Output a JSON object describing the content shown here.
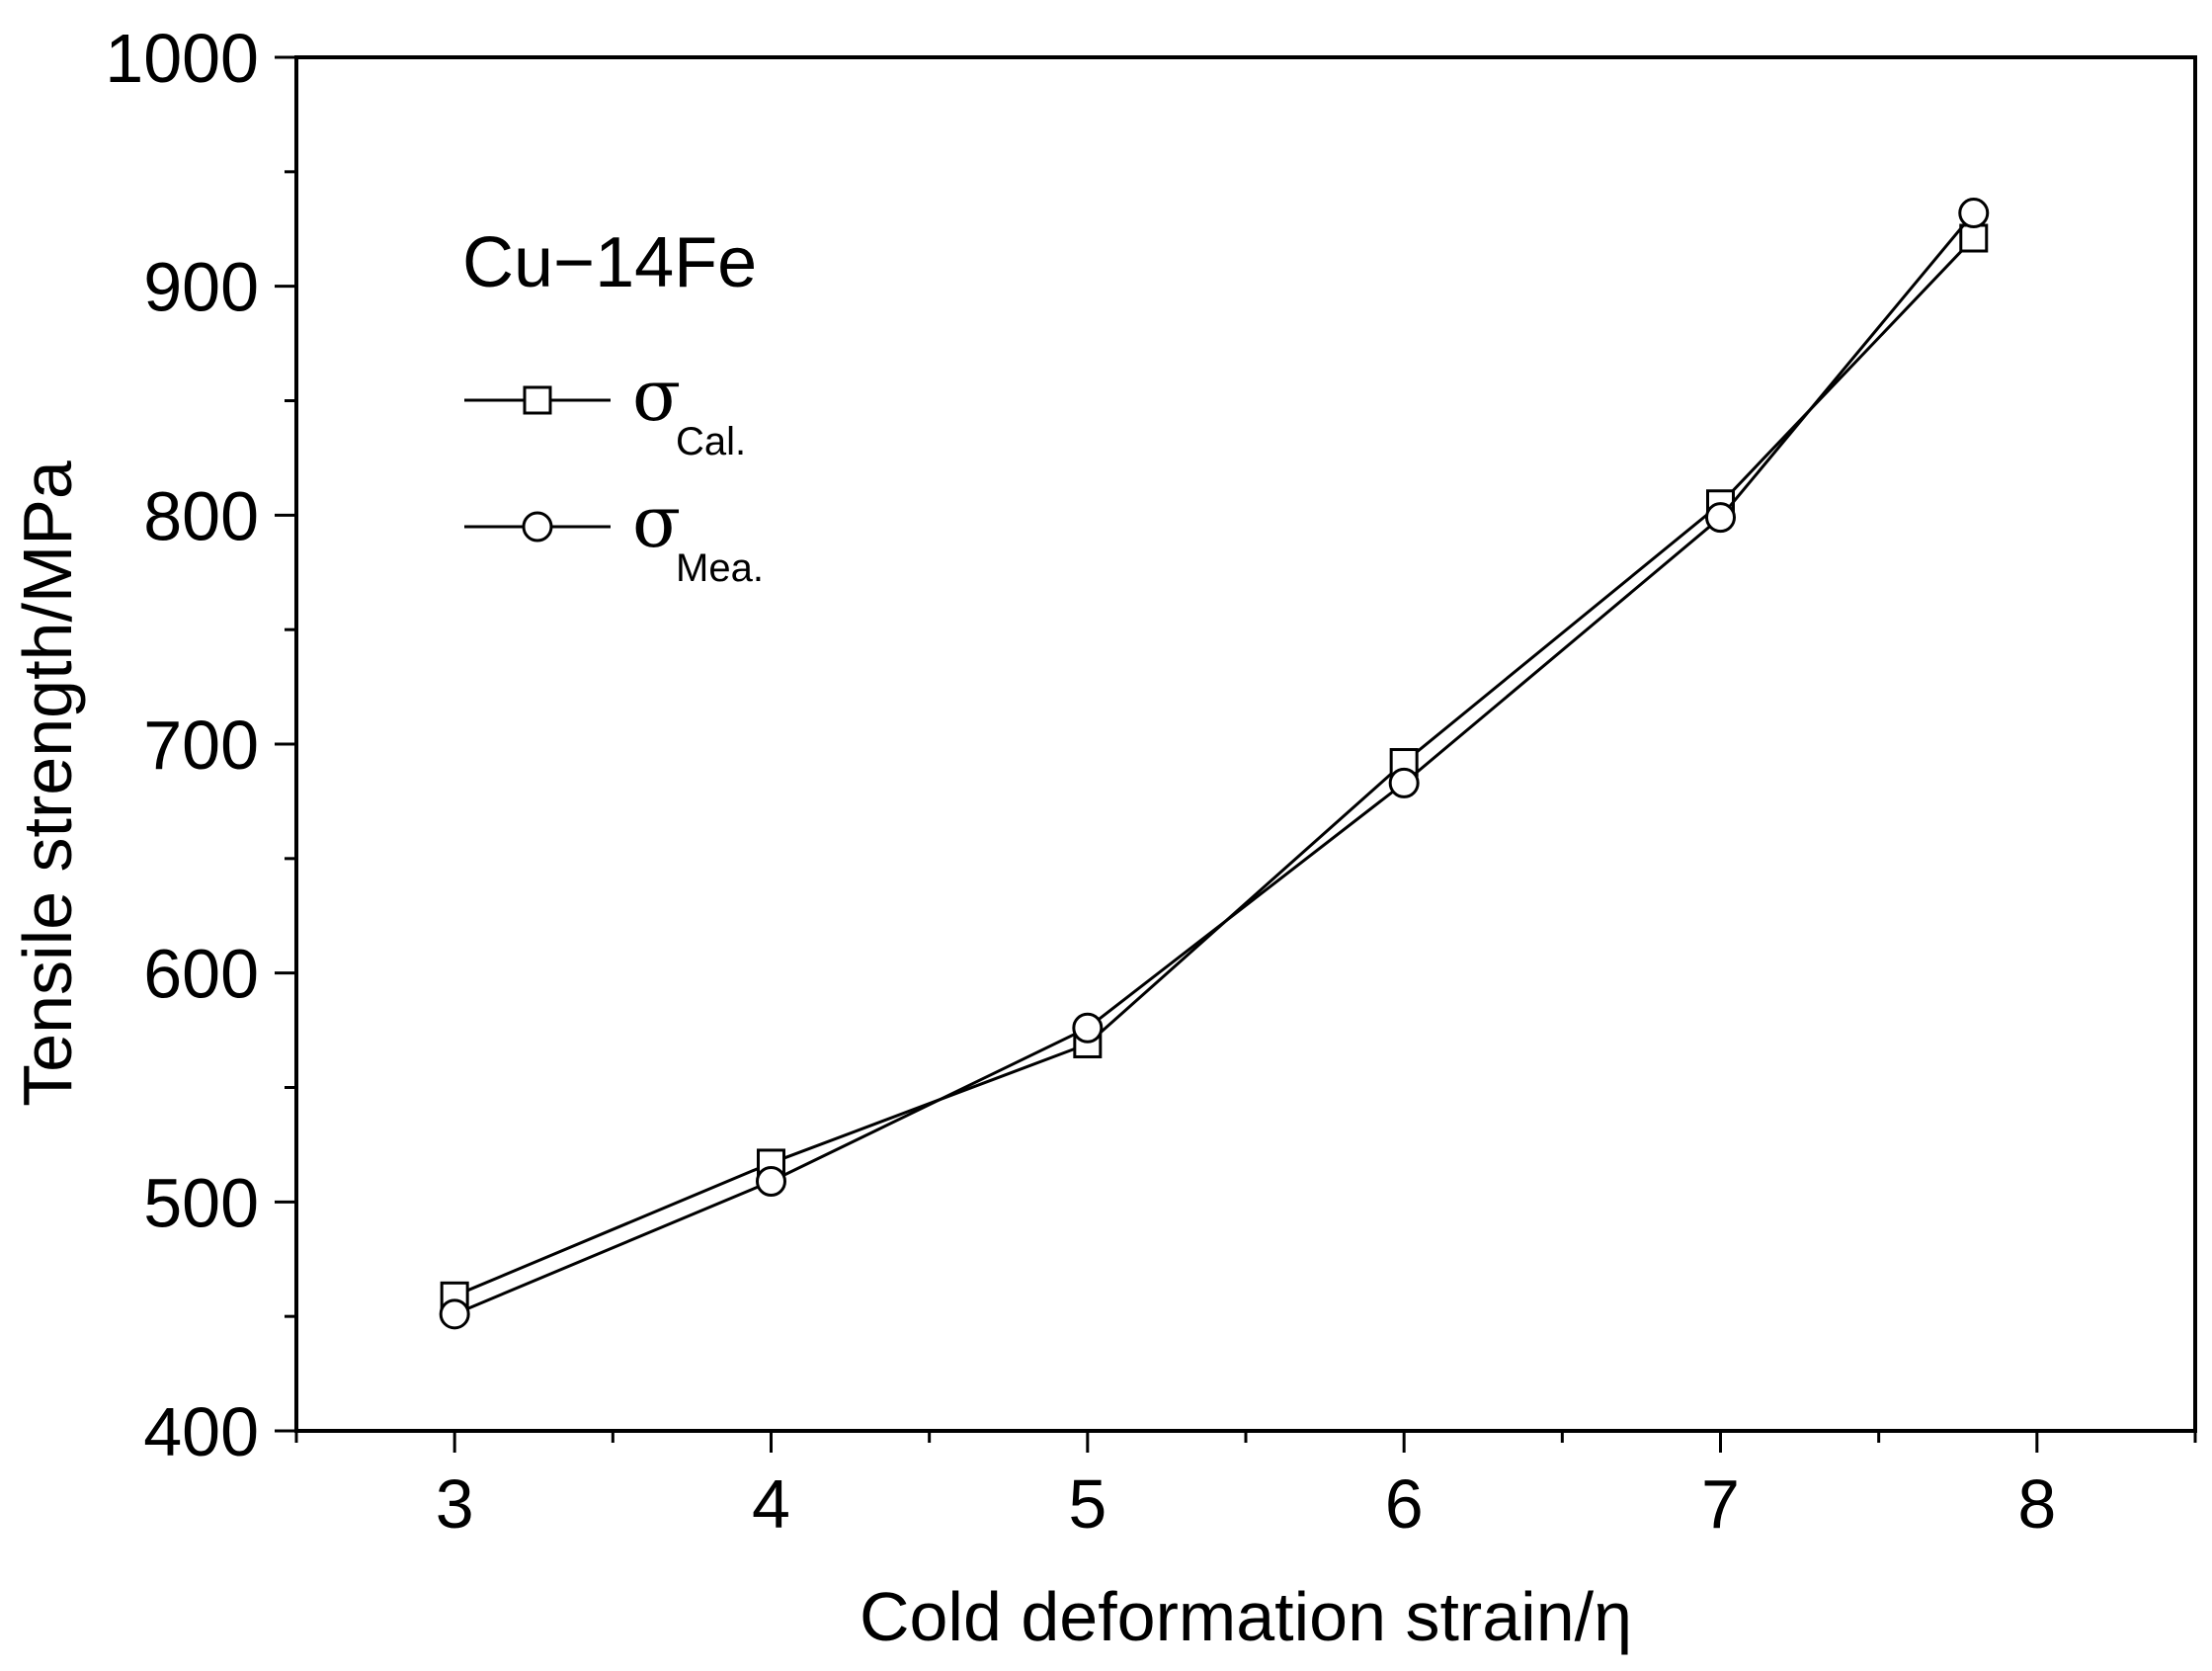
{
  "chart_data": {
    "type": "line",
    "xlabel": "Cold deformation strain/η",
    "ylabel": "Tensile strength/MPa",
    "annotation": "Cu−14Fe",
    "xlim": [
      2.5,
      8.5
    ],
    "ylim": [
      400,
      1000
    ],
    "x_ticks": [
      "3",
      "4",
      "5",
      "6",
      "7",
      "8"
    ],
    "y_ticks": [
      "400",
      "500",
      "600",
      "700",
      "800",
      "900",
      "1000"
    ],
    "grid": false,
    "legend_position": "top-left",
    "series": [
      {
        "name": "σ",
        "name_sub": "Cal.",
        "marker": "square",
        "x": [
          3,
          4,
          5,
          6,
          7,
          7.8
        ],
        "y": [
          459,
          517,
          569,
          692,
          805,
          921
        ]
      },
      {
        "name": "σ",
        "name_sub": "Mea.",
        "marker": "circle",
        "x": [
          3,
          4,
          5,
          6,
          7,
          7.8
        ],
        "y": [
          451,
          509,
          576,
          683,
          799,
          932
        ]
      }
    ]
  }
}
